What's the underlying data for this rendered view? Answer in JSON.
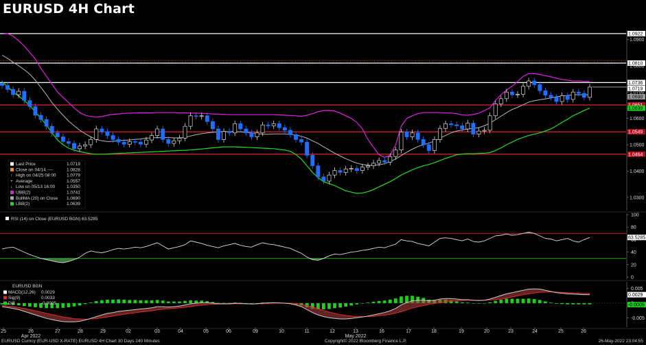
{
  "title": "EURUSD 4H Chart",
  "chart_data": {
    "type": "candlestick",
    "x_dates": [
      "25",
      "26",
      "27",
      "28",
      "29",
      "02",
      "03",
      "04",
      "05",
      "06",
      "09",
      "10",
      "11",
      "12",
      "13",
      "16",
      "17",
      "18",
      "19",
      "20",
      "23",
      "24",
      "25",
      "26"
    ],
    "x_month_labels": [
      {
        "label": "Apr 2022",
        "at": "26"
      },
      {
        "label": "May 2022",
        "at": "13"
      }
    ],
    "price_axis": {
      "ylim": [
        1.025,
        1.0935
      ],
      "ticks": [
        "1.0300",
        "1.0400",
        "1.0500",
        "1.0600",
        "1.0700",
        "1.0800",
        "1.0900"
      ]
    },
    "horizontal_levels": [
      {
        "value": 1.0922,
        "color": "#ffffff",
        "label": "1.0922"
      },
      {
        "value": 1.081,
        "color": "#ffffff",
        "label": "1.0810"
      },
      {
        "value": 1.0736,
        "color": "#ffffff",
        "label": "1.0736"
      },
      {
        "value": 1.0651,
        "color": "#cc2233",
        "label": "1.0651"
      },
      {
        "value": 1.0549,
        "color": "#cc2233",
        "label": "1.0549"
      },
      {
        "value": 1.0464,
        "color": "#cc2233",
        "label": "1.0464"
      }
    ],
    "right_badges": [
      {
        "value": 1.0719,
        "label": "1.0719",
        "bg": "#ffffff",
        "fg": "#000"
      },
      {
        "value": 1.069,
        "label": "1.0690",
        "bg": "#9a9a9a",
        "fg": "#000"
      },
      {
        "value": 1.0639,
        "label": "1.0639",
        "bg": "#22cc22",
        "fg": "#000"
      }
    ],
    "legend": [
      {
        "label": "Last Price",
        "value": "1.0719",
        "marker": "white-square"
      },
      {
        "label": "Close on 04/14 ----",
        "value": "1.0828",
        "marker": "orange-square"
      },
      {
        "label": "High on 04/25 08:00",
        "value": "1.0779",
        "marker": "up-arrow"
      },
      {
        "label": "Average",
        "value": "1.0557",
        "marker": "plus"
      },
      {
        "label": "Low on 05/13 16:00",
        "value": "1.0350",
        "marker": "down-arrow"
      },
      {
        "label": "UBB(2)",
        "value": "1.0741",
        "marker": "magenta-square"
      },
      {
        "label": "BollMA (20)  on Close",
        "value": "1.0690",
        "marker": "grey-square"
      },
      {
        "label": "LBB(2)",
        "value": "1.0639",
        "marker": "green-square"
      }
    ],
    "close_series": [
      1.0725,
      1.071,
      1.069,
      1.0703,
      1.0668,
      1.0645,
      1.0612,
      1.0596,
      1.057,
      1.0545,
      1.053,
      1.0512,
      1.0505,
      1.0485,
      1.0495,
      1.05,
      1.052,
      1.056,
      1.055,
      1.0535,
      1.052,
      1.051,
      1.0502,
      1.0512,
      1.051,
      1.0502,
      1.0518,
      1.0535,
      1.056,
      1.052,
      1.0505,
      1.0515,
      1.0525,
      1.057,
      1.061,
      1.0608,
      1.061,
      1.0588,
      1.056,
      1.052,
      1.055,
      1.0545,
      1.058,
      1.056,
      1.0545,
      1.053,
      1.0545,
      1.0575,
      1.0572,
      1.058,
      1.0565,
      1.0555,
      1.0538,
      1.052,
      1.051,
      1.046,
      1.042,
      1.0378,
      1.0362,
      1.0385,
      1.0402,
      1.0395,
      1.0408,
      1.041,
      1.0402,
      1.0415,
      1.042,
      1.043,
      1.044,
      1.0434,
      1.0455,
      1.048,
      1.0548,
      1.053,
      1.0545,
      1.052,
      1.05,
      1.0478,
      1.052,
      1.0562,
      1.058,
      1.0576,
      1.0572,
      1.056,
      1.0582,
      1.054,
      1.0552,
      1.0555,
      1.061,
      1.0655,
      1.0675,
      1.07,
      1.069,
      1.0692,
      1.0722,
      1.0742,
      1.0728,
      1.0705,
      1.0688,
      1.068,
      1.0664,
      1.0686,
      1.0672,
      1.07,
      1.0695,
      1.068,
      1.0719
    ],
    "upper_band": [
      1.092,
      1.0922,
      1.0912,
      1.0895,
      1.0875,
      1.085,
      1.0825,
      1.079,
      1.076,
      1.073,
      1.07,
      1.068,
      1.066,
      1.064,
      1.0622,
      1.0612,
      1.0607,
      1.0605,
      1.0607,
      1.0612,
      1.0615,
      1.0617,
      1.0619,
      1.062,
      1.0621,
      1.0621,
      1.0621,
      1.0621,
      1.0622,
      1.0622,
      1.0622,
      1.0622,
      1.0621,
      1.0621,
      1.062,
      1.062,
      1.0619,
      1.0618,
      1.0617,
      1.0616,
      1.0615,
      1.0614,
      1.0614,
      1.0614,
      1.0614,
      1.0614,
      1.0614,
      1.0614,
      1.0614,
      1.0614,
      1.0613,
      1.0612,
      1.0611,
      1.061,
      1.0608,
      1.0612,
      1.0618,
      1.0625,
      1.063,
      1.063,
      1.0628,
      1.062,
      1.061,
      1.06,
      1.0585,
      1.056,
      1.052,
      1.049,
      1.0462,
      1.0452,
      1.046,
      1.05,
      1.057,
      1.06,
      1.061,
      1.0618,
      1.0622,
      1.0622,
      1.0622,
      1.0622,
      1.0621,
      1.062,
      1.0618,
      1.0613,
      1.0612,
      1.0615,
      1.062,
      1.063,
      1.064,
      1.0668,
      1.069,
      1.0708,
      1.0722,
      1.074,
      1.076,
      1.077,
      1.077,
      1.0767,
      1.0762,
      1.0758,
      1.0753,
      1.0748,
      1.0745,
      1.0742,
      1.0742,
      1.0741,
      1.0741
    ],
    "middle_band": [
      1.084,
      1.0828,
      1.0813,
      1.08,
      1.0785,
      1.0768,
      1.0745,
      1.0718,
      1.069,
      1.066,
      1.0635,
      1.0612,
      1.059,
      1.0572,
      1.0555,
      1.0542,
      1.053,
      1.052,
      1.0515,
      1.0512,
      1.0513,
      1.0515,
      1.0517,
      1.0518,
      1.052,
      1.0522,
      1.0525,
      1.0526,
      1.0527,
      1.0527,
      1.0527,
      1.0526,
      1.0526,
      1.0528,
      1.0533,
      1.0538,
      1.0542,
      1.0545,
      1.0547,
      1.0549,
      1.055,
      1.055,
      1.055,
      1.0549,
      1.0547,
      1.0545,
      1.0543,
      1.054,
      1.054,
      1.0541,
      1.0541,
      1.0541,
      1.054,
      1.0537,
      1.0532,
      1.0525,
      1.0515,
      1.0505,
      1.0492,
      1.048,
      1.0468,
      1.0457,
      1.0447,
      1.0438,
      1.043,
      1.0425,
      1.0422,
      1.0422,
      1.0424,
      1.0428,
      1.0436,
      1.0446,
      1.0459,
      1.0472,
      1.0483,
      1.0493,
      1.05,
      1.0506,
      1.0514,
      1.0525,
      1.0535,
      1.0545,
      1.0552,
      1.0556,
      1.056,
      1.0562,
      1.0565,
      1.0572,
      1.0582,
      1.0595,
      1.0608,
      1.0622,
      1.0634,
      1.0642,
      1.0652,
      1.0662,
      1.0667,
      1.0671,
      1.0674,
      1.0678,
      1.0682,
      1.0685,
      1.0687,
      1.069,
      1.069,
      1.069,
      1.069
    ],
    "lower_band": [
      1.074,
      1.072,
      1.07,
      1.0685,
      1.0668,
      1.0648,
      1.0625,
      1.06,
      1.0575,
      1.0545,
      1.0518,
      1.05,
      1.0487,
      1.0479,
      1.0474,
      1.047,
      1.0466,
      1.0464,
      1.0464,
      1.0465,
      1.0466,
      1.0467,
      1.0468,
      1.0469,
      1.047,
      1.0471,
      1.0472,
      1.0473,
      1.0474,
      1.0475,
      1.0476,
      1.0477,
      1.0478,
      1.0479,
      1.048,
      1.0482,
      1.0484,
      1.0486,
      1.0488,
      1.049,
      1.0492,
      1.0492,
      1.0492,
      1.0491,
      1.049,
      1.0489,
      1.0488,
      1.0487,
      1.0486,
      1.0485,
      1.0482,
      1.048,
      1.0475,
      1.0463,
      1.0445,
      1.042,
      1.0395,
      1.0375,
      1.036,
      1.0352,
      1.0345,
      1.0335,
      1.0325,
      1.032,
      1.0315,
      1.0317,
      1.0322,
      1.033,
      1.034,
      1.035,
      1.036,
      1.0372,
      1.0385,
      1.0395,
      1.0405,
      1.0413,
      1.042,
      1.0425,
      1.0432,
      1.044,
      1.0448,
      1.0455,
      1.0462,
      1.0465,
      1.0466,
      1.0466,
      1.0467,
      1.0468,
      1.047,
      1.0478,
      1.0488,
      1.05,
      1.051,
      1.052,
      1.0528,
      1.0535,
      1.054,
      1.0545,
      1.0552,
      1.056,
      1.0572,
      1.0585,
      1.0597,
      1.061,
      1.062,
      1.063,
      1.0639
    ],
    "rsi": {
      "label": "RSI (14)  on Close (EURUSD BGN)  63.5285",
      "last_label": "63.5285",
      "ylim": [
        0,
        100
      ],
      "ticks": [
        "0",
        "20",
        "40",
        "60",
        "80",
        "100"
      ],
      "levels": [
        70,
        30
      ],
      "values": [
        45,
        47,
        48,
        44,
        40,
        36,
        33,
        30,
        28,
        26,
        24,
        23,
        25,
        28,
        32,
        38,
        42,
        40,
        39,
        41,
        44,
        46,
        45,
        46,
        48,
        47,
        49,
        52,
        55,
        50,
        45,
        47,
        49,
        52,
        58,
        56,
        54,
        51,
        49,
        47,
        50,
        52,
        54,
        51,
        49,
        48,
        52,
        55,
        53,
        52,
        50,
        48,
        46,
        42,
        38,
        32,
        28,
        27,
        30,
        34,
        37,
        36,
        38,
        40,
        41,
        43,
        44,
        46,
        48,
        47,
        50,
        53,
        60,
        58,
        57,
        54,
        52,
        50,
        56,
        62,
        63,
        62,
        60,
        58,
        61,
        57,
        56,
        58,
        62,
        66,
        67,
        69,
        67,
        68,
        70,
        72,
        70,
        66,
        62,
        61,
        58,
        60,
        62,
        58,
        56,
        60,
        63.53
      ]
    },
    "macd": {
      "label": "EURUSD BGN",
      "legend": [
        {
          "label": "MACD(12,26)",
          "value": "0.0029",
          "marker": "white-square"
        },
        {
          "label": "Sig(9)",
          "value": "0.0033",
          "marker": "red-square"
        },
        {
          "label": "Diff",
          "value": "-0.0005",
          "marker": "green-square"
        }
      ],
      "ylim": [
        -0.0075,
        0.0068
      ],
      "ticks": [
        "0.005",
        "0",
        "-0.005"
      ],
      "badges": [
        {
          "value": 0.0029,
          "label": "0.0029",
          "bg": "#ffffff",
          "fg": "#000"
        },
        {
          "value": -0.0005,
          "label": "-0.0005",
          "bg": "#22cc22",
          "fg": "#000"
        }
      ],
      "macd_values": [
        -0.0012,
        -0.0015,
        -0.0018,
        -0.0022,
        -0.0028,
        -0.0034,
        -0.004,
        -0.0046,
        -0.0052,
        -0.0056,
        -0.006,
        -0.0063,
        -0.0064,
        -0.0064,
        -0.0062,
        -0.0058,
        -0.0052,
        -0.0046,
        -0.004,
        -0.0035,
        -0.0032,
        -0.0028,
        -0.0026,
        -0.0024,
        -0.0022,
        -0.002,
        -0.0018,
        -0.0016,
        -0.0012,
        -0.0012,
        -0.0013,
        -0.0012,
        -0.001,
        -0.0006,
        -0.0002,
        0.0,
        0.0002,
        0.0002,
        0.0,
        -0.0002,
        -0.0002,
        -0.0002,
        0.0,
        -0.0001,
        -0.0002,
        -0.0003,
        -0.0002,
        0.0,
        0.0001,
        0.0002,
        0.0001,
        0.0,
        -0.0002,
        -0.0006,
        -0.0012,
        -0.0022,
        -0.0032,
        -0.004,
        -0.0046,
        -0.005,
        -0.0052,
        -0.0054,
        -0.0054,
        -0.0052,
        -0.005,
        -0.0047,
        -0.0044,
        -0.004,
        -0.0036,
        -0.0032,
        -0.0026,
        -0.0018,
        -0.0006,
        0.0002,
        0.0008,
        0.001,
        0.001,
        0.0008,
        0.001,
        0.0014,
        0.0016,
        0.0016,
        0.0014,
        0.0012,
        0.0012,
        0.001,
        0.0009,
        0.001,
        0.0014,
        0.002,
        0.0026,
        0.0032,
        0.0036,
        0.004,
        0.0044,
        0.0048,
        0.0049,
        0.0048,
        0.0044,
        0.004,
        0.0036,
        0.0034,
        0.0032,
        0.0031,
        0.003,
        0.0029,
        0.0029
      ],
      "signal_values": [
        -0.0008,
        -0.001,
        -0.0012,
        -0.0015,
        -0.0018,
        -0.0022,
        -0.0026,
        -0.003,
        -0.0035,
        -0.0039,
        -0.0043,
        -0.0047,
        -0.005,
        -0.0053,
        -0.0054,
        -0.0055,
        -0.0054,
        -0.0053,
        -0.005,
        -0.0047,
        -0.0044,
        -0.0041,
        -0.0038,
        -0.0035,
        -0.0033,
        -0.003,
        -0.0028,
        -0.0026,
        -0.0023,
        -0.0021,
        -0.0019,
        -0.0018,
        -0.0016,
        -0.0014,
        -0.0012,
        -0.0009,
        -0.0007,
        -0.0005,
        -0.0004,
        -0.0003,
        -0.0003,
        -0.0003,
        -0.0002,
        -0.0002,
        -0.0002,
        -0.0002,
        -0.0002,
        -0.0002,
        -0.0001,
        0.0,
        0.0,
        0.0,
        0.0,
        -0.0001,
        -0.0004,
        -0.0008,
        -0.0013,
        -0.0019,
        -0.0025,
        -0.003,
        -0.0035,
        -0.0039,
        -0.0042,
        -0.0044,
        -0.0046,
        -0.0046,
        -0.0046,
        -0.0045,
        -0.0043,
        -0.0041,
        -0.0038,
        -0.0034,
        -0.0029,
        -0.0023,
        -0.0017,
        -0.0012,
        -0.0008,
        -0.0004,
        -0.0001,
        0.0002,
        0.0004,
        0.0006,
        0.0008,
        0.0009,
        0.001,
        0.001,
        0.001,
        0.001,
        0.0011,
        0.0012,
        0.0014,
        0.0017,
        0.0021,
        0.0025,
        0.0029,
        0.0032,
        0.0035,
        0.0037,
        0.0038,
        0.0038,
        0.0038,
        0.0037,
        0.0036,
        0.0035,
        0.0034,
        0.0033,
        0.0033
      ]
    }
  },
  "footer": {
    "left": "EURUSD Curncy (EUR-USD X-RATE) EURUSD 4H Chart 30 Days 240 Minutes",
    "center": "Copyright© 2022 Bloomberg Finance L.P.",
    "right": "26-May-2022 23:04:55"
  }
}
